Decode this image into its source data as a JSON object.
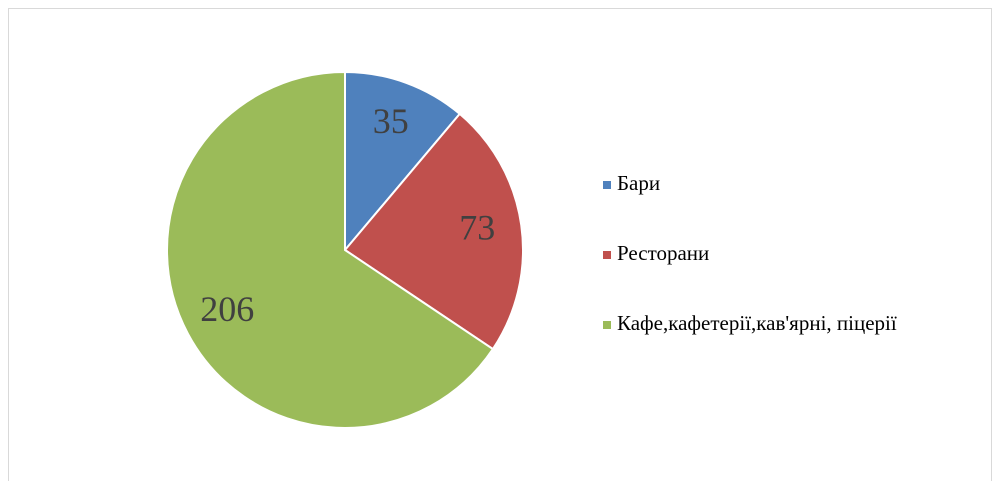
{
  "chart_data": {
    "type": "pie",
    "categories": [
      "Бари",
      "Ресторани",
      "Кафе,кафетерії,кав'ярні, піцерії"
    ],
    "values": [
      35,
      73,
      206
    ],
    "colors": [
      "#4f81bd",
      "#c0504d",
      "#9bbb59"
    ],
    "legend": "right"
  }
}
